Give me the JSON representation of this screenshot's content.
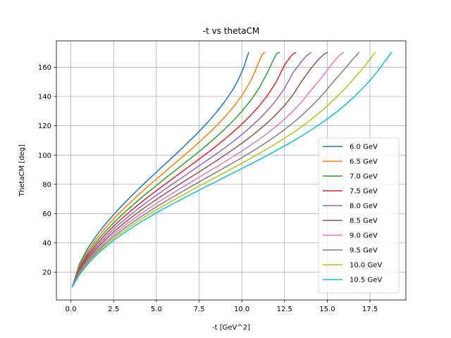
{
  "chart_data": {
    "type": "line",
    "title": "-t vs thetaCM",
    "xlabel": "-t [GeV^2]",
    "ylabel": "ThetaCM [deg]",
    "xlim": [
      -0.85,
      19.6
    ],
    "ylim": [
      1.0,
      178.0
    ],
    "xticks": [
      0,
      2.5,
      5,
      7.5,
      10,
      12.5,
      15,
      17.5
    ],
    "xtick_labels": [
      "0.0",
      "2.5",
      "5.0",
      "7.5",
      "10.0",
      "12.5",
      "15.0",
      "17.5"
    ],
    "yticks": [
      20,
      40,
      60,
      80,
      100,
      120,
      140,
      160
    ],
    "ytick_labels": [
      "20",
      "40",
      "60",
      "80",
      "100",
      "120",
      "140",
      "160"
    ],
    "grid": true,
    "legend": "lower-right",
    "series": [
      {
        "name": "6.0 GeV",
        "color": "#1f77b4",
        "x": [
          0.08,
          0.5,
          1.0,
          1.5,
          2.0,
          2.5,
          3.0,
          3.5,
          4.0,
          4.5,
          5.0,
          5.5,
          6.0,
          6.5,
          7.0,
          7.5,
          8.0,
          8.5,
          9.0,
          9.5,
          9.8,
          10.1,
          10.3,
          10.4
        ],
        "y": [
          10,
          25.6,
          36.5,
          45.1,
          52.6,
          59.3,
          65.6,
          71.6,
          77.3,
          82.9,
          88.3,
          93.7,
          99.1,
          104.6,
          110.3,
          116.1,
          122.3,
          129.0,
          136.4,
          145.1,
          151.5,
          159.5,
          166.7,
          170
        ]
      },
      {
        "name": "6.5 GeV",
        "color": "#ff7f0e",
        "x": [
          0.08,
          0.5,
          1.0,
          1.5,
          2.0,
          2.5,
          3.0,
          3.5,
          4.0,
          4.5,
          5.0,
          5.5,
          6.0,
          6.5,
          7.0,
          7.5,
          8.0,
          8.5,
          9.0,
          9.5,
          10.0,
          10.5,
          10.8,
          11.1,
          11.25,
          11.35
        ],
        "y": [
          10,
          24.3,
          34.7,
          42.9,
          50.0,
          56.4,
          62.3,
          67.9,
          73.3,
          78.5,
          83.5,
          88.5,
          93.5,
          98.5,
          103.5,
          108.7,
          114.1,
          119.8,
          125.9,
          132.7,
          140.5,
          150.2,
          157.8,
          166.5,
          169.5,
          170
        ]
      },
      {
        "name": "7.0 GeV",
        "color": "#2ca02c",
        "x": [
          0.08,
          0.5,
          1.0,
          1.5,
          2.0,
          2.5,
          3.0,
          3.5,
          4.0,
          4.5,
          5.0,
          5.5,
          6.0,
          6.5,
          7.0,
          7.5,
          8.0,
          8.5,
          9.0,
          9.5,
          10.0,
          10.5,
          11.0,
          11.5,
          11.8,
          12.05,
          12.2
        ],
        "y": [
          10,
          23.2,
          33.1,
          40.9,
          47.6,
          53.7,
          59.3,
          64.6,
          69.6,
          74.5,
          79.2,
          83.9,
          88.5,
          93.1,
          97.7,
          102.4,
          107.3,
          112.3,
          117.7,
          123.4,
          129.8,
          137.0,
          145.5,
          156.4,
          163.9,
          169.5,
          170
        ]
      },
      {
        "name": "7.5 GeV",
        "color": "#d62728",
        "x": [
          0.08,
          0.5,
          1.0,
          1.5,
          2.0,
          2.5,
          3.0,
          3.5,
          4.0,
          4.5,
          5.0,
          5.5,
          6.0,
          6.5,
          7.0,
          7.5,
          8.0,
          8.5,
          9.0,
          9.5,
          10.0,
          10.5,
          11.0,
          11.5,
          12.0,
          12.5,
          12.8,
          13.0,
          13.15
        ],
        "y": [
          10,
          22.2,
          31.7,
          39.1,
          45.6,
          51.4,
          56.8,
          61.8,
          66.6,
          71.2,
          75.6,
          80.0,
          84.3,
          88.6,
          92.9,
          97.2,
          101.6,
          106.1,
          110.8,
          115.8,
          121.1,
          126.9,
          133.3,
          140.7,
          149.6,
          161.5,
          166.5,
          169.0,
          170
        ]
      },
      {
        "name": "8.0 GeV",
        "color": "#9467bd",
        "x": [
          0.08,
          0.5,
          1.0,
          1.5,
          2.0,
          2.5,
          3.0,
          3.5,
          4.0,
          4.5,
          5.0,
          5.5,
          6.0,
          6.5,
          7.0,
          7.5,
          8.0,
          8.5,
          9.0,
          9.5,
          10.0,
          10.5,
          11.0,
          11.5,
          12.0,
          12.5,
          13.0,
          13.5,
          13.8,
          14.05
        ],
        "y": [
          10,
          21.4,
          30.5,
          37.6,
          43.8,
          49.4,
          54.5,
          59.3,
          63.9,
          68.3,
          72.5,
          76.6,
          80.6,
          84.6,
          88.6,
          92.6,
          96.6,
          100.7,
          104.9,
          109.3,
          114.0,
          119.0,
          124.4,
          130.4,
          137.3,
          145.6,
          156.3,
          164.0,
          168.0,
          170
        ]
      },
      {
        "name": "8.5 GeV",
        "color": "#8c564b",
        "x": [
          0.08,
          0.5,
          1.0,
          1.5,
          2.0,
          2.5,
          3.0,
          3.5,
          4.0,
          4.5,
          5.0,
          5.5,
          6.0,
          6.5,
          7.0,
          7.5,
          8.0,
          8.5,
          9.0,
          9.5,
          10.0,
          10.5,
          11.0,
          11.5,
          12.0,
          12.5,
          13.0,
          13.5,
          14.0,
          14.5,
          14.8,
          15.0
        ],
        "y": [
          10,
          20.6,
          29.3,
          36.2,
          42.2,
          47.5,
          52.4,
          57.0,
          61.4,
          65.6,
          69.6,
          73.5,
          77.3,
          81.1,
          84.8,
          88.5,
          92.2,
          96.0,
          99.9,
          103.9,
          108.0,
          112.4,
          117.1,
          122.1,
          127.6,
          133.8,
          141.2,
          150.4,
          158.5,
          165.5,
          168.8,
          170
        ]
      },
      {
        "name": "9.0 GeV",
        "color": "#e377c2",
        "x": [
          0.08,
          0.5,
          1.0,
          1.5,
          2.0,
          2.5,
          3.0,
          3.5,
          4.0,
          4.5,
          5.0,
          5.5,
          6.0,
          6.5,
          7.0,
          7.5,
          8.0,
          8.5,
          9.0,
          9.5,
          10.0,
          10.5,
          11.0,
          11.5,
          12.0,
          12.5,
          13.0,
          13.5,
          14.0,
          14.5,
          15.0,
          15.5,
          15.75,
          15.95
        ],
        "y": [
          10,
          19.9,
          28.3,
          35.0,
          40.7,
          45.8,
          50.6,
          55.0,
          59.1,
          63.1,
          66.9,
          70.6,
          74.3,
          77.8,
          81.3,
          84.8,
          88.3,
          91.8,
          95.4,
          99.0,
          102.7,
          106.6,
          110.6,
          114.9,
          119.5,
          124.5,
          130.0,
          136.3,
          143.5,
          150.5,
          158.0,
          165.5,
          168.5,
          170
        ]
      },
      {
        "name": "9.5 GeV",
        "color": "#7f7f7f",
        "x": [
          0.08,
          0.5,
          1.0,
          1.5,
          2.0,
          2.5,
          3.0,
          3.5,
          4.0,
          4.5,
          5.0,
          5.5,
          6.0,
          6.5,
          7.0,
          7.5,
          8.0,
          8.5,
          9.0,
          9.5,
          10.0,
          10.5,
          11.0,
          11.5,
          12.0,
          12.5,
          13.0,
          13.5,
          14.0,
          14.5,
          15.0,
          15.5,
          16.0,
          16.5,
          16.85
        ],
        "y": [
          10,
          19.3,
          27.4,
          33.8,
          39.4,
          44.3,
          48.9,
          53.1,
          57.1,
          60.9,
          64.6,
          68.1,
          71.6,
          74.9,
          78.3,
          81.6,
          84.9,
          88.2,
          91.5,
          94.8,
          98.2,
          101.7,
          105.3,
          109.1,
          113.1,
          117.4,
          122.0,
          127.0,
          132.6,
          138.4,
          145.0,
          152.0,
          158.5,
          165.5,
          170
        ]
      },
      {
        "name": "10.0 GeV",
        "color": "#bcbd22",
        "x": [
          0.08,
          0.5,
          1.0,
          1.5,
          2.0,
          2.5,
          3.0,
          3.5,
          4.0,
          4.5,
          5.0,
          5.5,
          6.0,
          6.5,
          7.0,
          7.5,
          8.0,
          8.5,
          9.0,
          9.5,
          10.0,
          10.5,
          11.0,
          11.5,
          12.0,
          12.5,
          13.0,
          13.5,
          14.0,
          14.5,
          15.0,
          15.5,
          16.0,
          16.5,
          17.0,
          17.5,
          17.8
        ],
        "y": [
          10,
          18.7,
          26.6,
          32.8,
          38.2,
          43.0,
          47.4,
          51.5,
          55.3,
          59.0,
          62.5,
          65.9,
          69.2,
          72.4,
          75.6,
          78.8,
          81.9,
          85.0,
          88.1,
          91.2,
          94.4,
          97.6,
          100.9,
          104.3,
          107.8,
          111.5,
          115.3,
          119.4,
          123.8,
          128.5,
          133.6,
          139.2,
          145.0,
          151.5,
          158.0,
          165.5,
          170
        ]
      },
      {
        "name": "10.5 GeV",
        "color": "#17becf",
        "x": [
          0.08,
          0.5,
          1.0,
          1.5,
          2.0,
          2.5,
          3.0,
          3.5,
          4.0,
          4.5,
          5.0,
          5.5,
          6.0,
          6.5,
          7.0,
          7.5,
          8.0,
          8.5,
          9.0,
          9.5,
          10.0,
          10.5,
          11.0,
          11.5,
          12.0,
          12.5,
          13.0,
          13.5,
          14.0,
          14.5,
          15.0,
          15.5,
          16.0,
          16.5,
          17.0,
          17.5,
          18.0,
          18.4,
          18.75
        ],
        "y": [
          10,
          18.2,
          25.8,
          31.8,
          37.0,
          41.7,
          45.9,
          49.9,
          53.6,
          57.1,
          60.5,
          63.8,
          66.9,
          70.0,
          73.0,
          76.0,
          79.0,
          81.9,
          84.9,
          87.8,
          90.8,
          93.7,
          96.7,
          99.8,
          103.0,
          106.2,
          109.5,
          113.0,
          116.7,
          120.5,
          124.6,
          129.0,
          133.8,
          139.0,
          144.8,
          151.0,
          158.0,
          164.5,
          170
        ]
      }
    ]
  }
}
